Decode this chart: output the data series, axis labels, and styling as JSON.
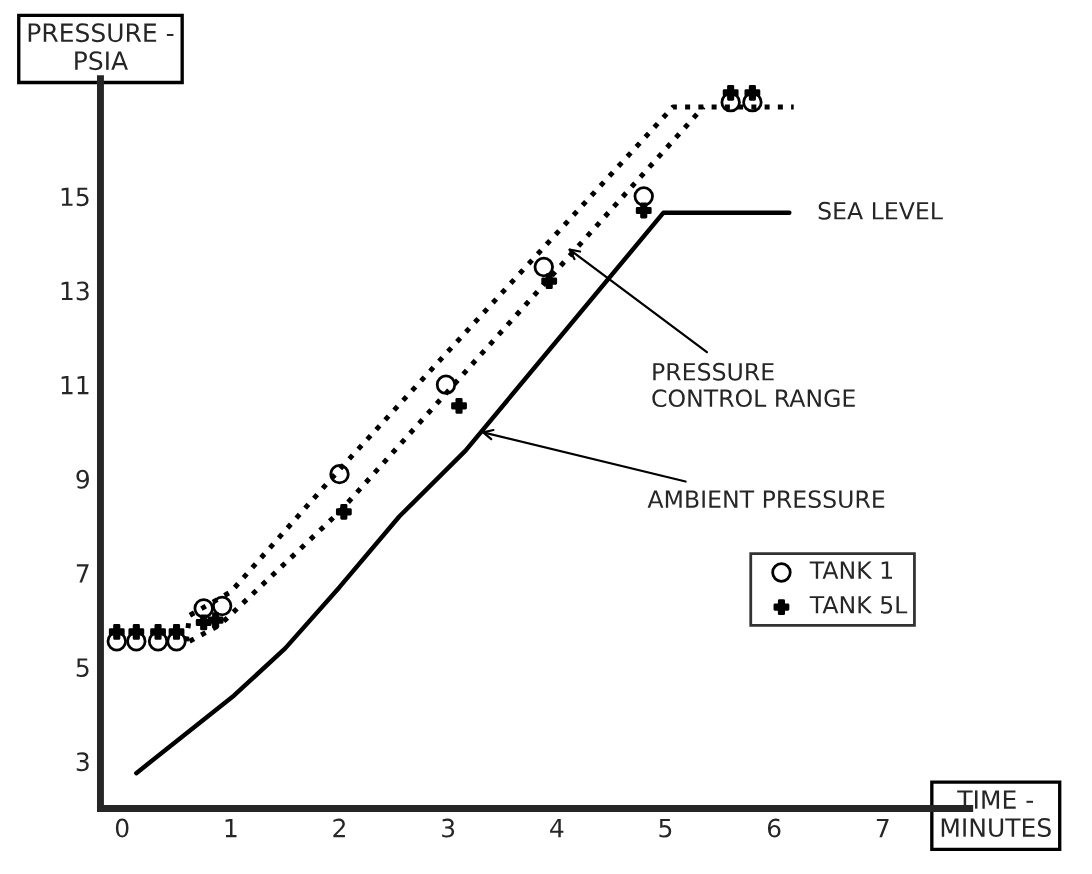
{
  "chart_data": {
    "type": "line",
    "xlabel": "TIME -\nMINUTES",
    "ylabel": "PRESSURE -\nPSIA",
    "xlim": [
      -0.2,
      7.8
    ],
    "ylim": [
      2,
      17.5
    ],
    "xticks": [
      0,
      1,
      2,
      3,
      4,
      5,
      6,
      7
    ],
    "yticks": [
      3,
      5,
      7,
      9,
      11,
      13,
      15
    ],
    "grid": false,
    "legend": "right",
    "series": [
      {
        "color": "#000000",
        "line_style": "solid",
        "marker": "none",
        "x": [
          0.13,
          1.03,
          1.5,
          2.0,
          2.55,
          3.16,
          4.98,
          6.14
        ],
        "values": [
          2.75,
          4.4,
          5.4,
          6.7,
          8.2,
          9.6,
          14.65,
          14.65
        ]
      },
      {
        "color": "#000000",
        "line_style": "dotted",
        "marker": "none",
        "x": [
          0.59,
          0.62,
          1.0,
          2.0,
          5.07,
          6.18
        ],
        "values": [
          5.55,
          6.1,
          6.6,
          9.2,
          16.9,
          16.9
        ]
      },
      {
        "color": "#000000",
        "line_style": "dotted",
        "marker": "none",
        "x": [
          0.62,
          0.9,
          2.0,
          5.35
        ],
        "values": [
          5.55,
          5.9,
          8.3,
          16.9
        ]
      },
      {
        "type": "scatter",
        "name": "TANK 1",
        "color": "#000000",
        "marker": "circle",
        "x": [
          -0.05,
          0.13,
          0.33,
          0.5,
          0.75,
          0.92,
          2.0,
          2.98,
          3.88,
          4.8,
          5.6,
          5.8
        ],
        "values": [
          5.55,
          5.55,
          5.55,
          5.55,
          6.25,
          6.3,
          9.1,
          11.0,
          13.5,
          15.0,
          17.0,
          17.0
        ]
      },
      {
        "type": "scatter",
        "name": "TANK 5L",
        "color": "#000000",
        "marker": "cross",
        "x": [
          -0.05,
          0.13,
          0.33,
          0.5,
          0.75,
          0.86,
          2.04,
          3.1,
          3.93,
          4.8,
          5.6,
          5.8
        ],
        "values": [
          5.75,
          5.75,
          5.75,
          5.75,
          5.95,
          6.0,
          8.3,
          10.55,
          13.2,
          14.7,
          17.2,
          17.2
        ]
      }
    ],
    "annotations": [
      {
        "text": "SEA LEVEL",
        "x": 6.14,
        "y": 14.65
      },
      {
        "text": "PRESSURE\nCONTROL RANGE",
        "x": 4.1,
        "y": 13.9
      },
      {
        "text": "AMBIENT PRESSURE",
        "x": 3.3,
        "y": 10.0
      }
    ]
  }
}
